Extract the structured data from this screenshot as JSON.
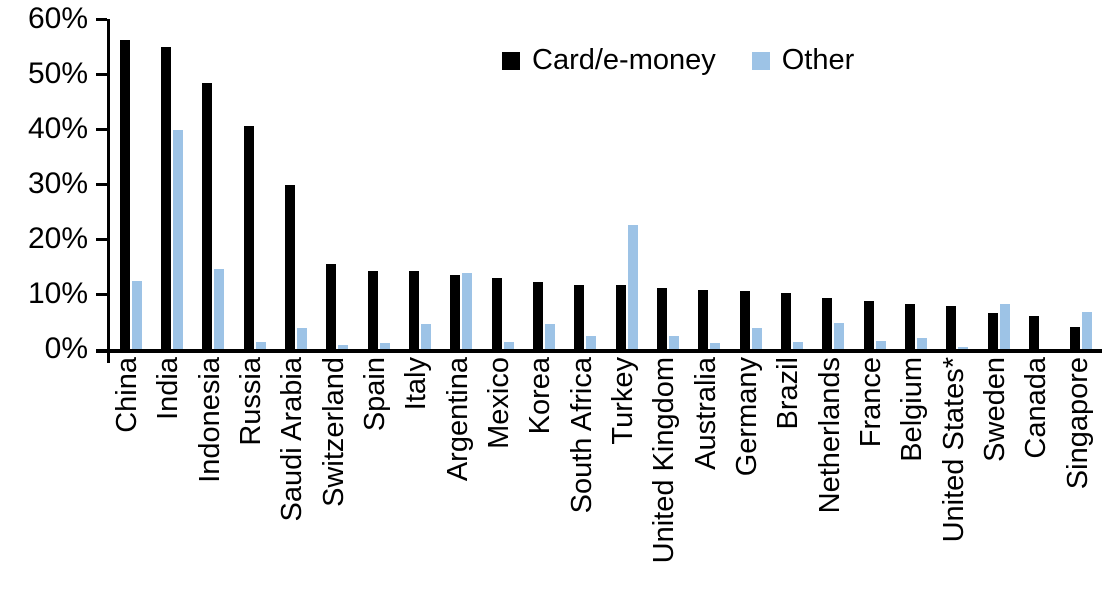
{
  "chart_data": {
    "type": "bar",
    "title": "",
    "xlabel": "",
    "ylabel": "",
    "ylim": [
      0,
      60
    ],
    "grid": false,
    "legend_position": "top-center",
    "ytick_values": [
      0,
      10,
      20,
      30,
      40,
      50,
      60
    ],
    "ytick_labels": [
      "0%",
      "10%",
      "20%",
      "30%",
      "40%",
      "50%",
      "60%"
    ],
    "categories": [
      "China",
      "India",
      "Indonesia",
      "Russia",
      "Saudi Arabia",
      "Switzerland",
      "Spain",
      "Italy",
      "Argentina",
      "Mexico",
      "Korea",
      "South Africa",
      "Turkey",
      "United Kingdom",
      "Australia",
      "Germany",
      "Brazil",
      "Netherlands",
      "France",
      "Belgium",
      "United States*",
      "Sweden",
      "Canada",
      "Singapore"
    ],
    "series": [
      {
        "name": "Card/e-money",
        "color": "#000000",
        "values": [
          56.2,
          55.0,
          48.3,
          40.5,
          29.8,
          15.5,
          14.1,
          14.1,
          13.4,
          13.0,
          12.2,
          11.7,
          11.6,
          11.1,
          10.8,
          10.6,
          10.1,
          9.2,
          8.7,
          8.2,
          7.8,
          6.6,
          6.0,
          4.0
        ]
      },
      {
        "name": "Other",
        "color": "#9DC3E6",
        "values": [
          12.3,
          39.8,
          14.6,
          1.2,
          3.8,
          0.8,
          1.1,
          4.6,
          13.9,
          1.3,
          4.6,
          2.4,
          22.6,
          2.4,
          1.1,
          3.9,
          1.3,
          4.8,
          1.5,
          2.0,
          0.3,
          8.2,
          0.0,
          6.8
        ]
      }
    ]
  },
  "legend": {
    "items": [
      {
        "label": "Card/e-money",
        "color": "#000000"
      },
      {
        "label": "Other",
        "color": "#9DC3E6"
      }
    ]
  },
  "colors": {
    "axis": "#000000",
    "background": "#ffffff",
    "series_card": "#000000",
    "series_other": "#9DC3E6"
  }
}
